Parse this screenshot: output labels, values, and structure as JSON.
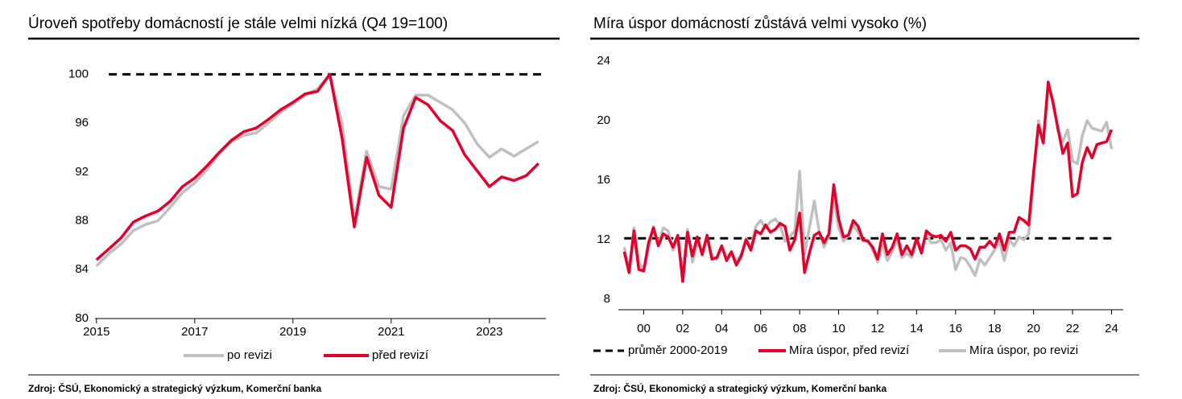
{
  "chart_data": [
    {
      "type": "line",
      "title": "Úroveň spotřeby domácností je stále velmi nízká (Q4 19=100)",
      "source": "Zdroj: ČSÚ, Ekonomický a strategický výzkum, Komerční banka",
      "x": [
        2015,
        2015.25,
        2015.5,
        2015.75,
        2016,
        2016.25,
        2016.5,
        2016.75,
        2017,
        2017.25,
        2017.5,
        2017.75,
        2018,
        2018.25,
        2018.5,
        2018.75,
        2019,
        2019.25,
        2019.5,
        2019.75,
        2020,
        2020.25,
        2020.5,
        2020.75,
        2021,
        2021.25,
        2021.5,
        2021.75,
        2022,
        2022.25,
        2022.5,
        2022.75,
        2023,
        2023.25,
        2023.5,
        2023.75,
        2024
      ],
      "series": [
        {
          "name": "po revizi",
          "color": "#c0c0c0",
          "values": [
            84.3,
            85.3,
            86.1,
            87.2,
            87.7,
            88.0,
            89.1,
            90.3,
            91.1,
            92.2,
            93.5,
            94.5,
            95.0,
            95.2,
            96.0,
            96.9,
            97.6,
            98.3,
            98.8,
            100,
            96.0,
            88.0,
            93.7,
            90.8,
            90.6,
            96.6,
            98.3,
            98.3,
            97.7,
            97.1,
            96.0,
            94.3,
            93.2,
            93.9,
            93.3,
            93.9,
            94.5
          ]
        },
        {
          "name": "před revizí",
          "color": "#e4002b",
          "values": [
            84.8,
            85.7,
            86.6,
            87.9,
            88.4,
            88.8,
            89.6,
            90.8,
            91.5,
            92.5,
            93.6,
            94.6,
            95.3,
            95.6,
            96.3,
            97.1,
            97.7,
            98.4,
            98.6,
            100,
            94.8,
            87.5,
            93.2,
            90.1,
            89.1,
            95.6,
            98.1,
            97.5,
            96.2,
            95.4,
            93.4,
            92.1,
            90.8,
            91.6,
            91.3,
            91.7,
            92.7
          ]
        }
      ],
      "reference": {
        "value": 100,
        "x": [
          2015.25,
          2024.15
        ],
        "color": "#000000"
      },
      "xlim": [
        2014.97,
        2024.15
      ],
      "xticks": [
        2015,
        2017,
        2019,
        2021,
        2023
      ],
      "ylim": [
        80,
        102
      ],
      "yticks": [
        80,
        84,
        88,
        92,
        96,
        100
      ],
      "grid": false
    },
    {
      "type": "line",
      "title": "Míra úspor domácností zůstává velmi vysoko (%)",
      "source": "Zdroj: ČSÚ, Ekonomický a strategický výzkum, Komerční banka",
      "x": [
        1999,
        1999.25,
        1999.5,
        1999.75,
        2000,
        2000.25,
        2000.5,
        2000.75,
        2001,
        2001.25,
        2001.5,
        2001.75,
        2002,
        2002.25,
        2002.5,
        2002.75,
        2003,
        2003.25,
        2003.5,
        2003.75,
        2004,
        2004.25,
        2004.5,
        2004.75,
        2005,
        2005.25,
        2005.5,
        2005.75,
        2006,
        2006.25,
        2006.5,
        2006.75,
        2007,
        2007.25,
        2007.5,
        2007.75,
        2008,
        2008.25,
        2008.5,
        2008.75,
        2009,
        2009.25,
        2009.5,
        2009.75,
        2010,
        2010.25,
        2010.5,
        2010.75,
        2011,
        2011.25,
        2011.5,
        2011.75,
        2012,
        2012.25,
        2012.5,
        2012.75,
        2013,
        2013.25,
        2013.5,
        2013.75,
        2014,
        2014.25,
        2014.5,
        2014.75,
        2015,
        2015.25,
        2015.5,
        2015.75,
        2016,
        2016.25,
        2016.5,
        2016.75,
        2017,
        2017.25,
        2017.5,
        2017.75,
        2018,
        2018.25,
        2018.5,
        2018.75,
        2019,
        2019.25,
        2019.5,
        2019.75,
        2020,
        2020.25,
        2020.5,
        2020.75,
        2021,
        2021.25,
        2021.5,
        2021.75,
        2022,
        2022.25,
        2022.5,
        2022.75,
        2023,
        2023.25,
        2023.5,
        2023.75,
        2024
      ],
      "series": [
        {
          "name": "Míra úspor, před revizí",
          "color": "#e4002b",
          "values": [
            11.2,
            9.8,
            12.6,
            10.0,
            9.9,
            11.8,
            12.8,
            11.6,
            12.4,
            12.2,
            11.5,
            12.3,
            9.2,
            12.5,
            10.9,
            12.2,
            11.0,
            12.3,
            10.7,
            10.8,
            11.6,
            10.6,
            11.2,
            10.3,
            10.9,
            12.0,
            11.3,
            12.6,
            12.4,
            13.0,
            12.5,
            12.7,
            13.1,
            12.9,
            11.3,
            12.0,
            13.8,
            9.8,
            11.1,
            12.3,
            12.5,
            11.8,
            12.4,
            15.7,
            13.4,
            12.2,
            12.3,
            13.3,
            12.9,
            12.0,
            11.9,
            11.5,
            10.7,
            12.4,
            11.0,
            11.5,
            12.4,
            11.0,
            11.6,
            11.0,
            12.1,
            11.1,
            12.6,
            12.3,
            12.2,
            12.3,
            11.9,
            12.5,
            11.3,
            11.6,
            11.6,
            11.4,
            10.7,
            11.5,
            11.5,
            11.9,
            11.5,
            12.4,
            11.3,
            12.5,
            12.5,
            13.5,
            13.3,
            13.0,
            16.5,
            19.7,
            18.5,
            22.6,
            21.2,
            19.5,
            17.8,
            18.5,
            14.9,
            15.1,
            17.2,
            18.2,
            17.5,
            18.4,
            18.5,
            18.6,
            19.4
          ]
        },
        {
          "name": "Míra úspor, po revizi",
          "color": "#c0c0c0",
          "values": [
            11.5,
            10.0,
            12.8,
            10.5,
            10.0,
            11.5,
            12.9,
            11.7,
            12.8,
            12.6,
            11.3,
            12.0,
            9.8,
            12.7,
            10.5,
            11.8,
            11.2,
            12.1,
            10.9,
            10.7,
            11.5,
            10.9,
            11.1,
            10.6,
            11.0,
            12.1,
            11.5,
            12.9,
            13.3,
            12.8,
            13.2,
            13.4,
            13.0,
            11.9,
            12.2,
            12.6,
            16.6,
            11.0,
            12.8,
            14.6,
            12.6,
            11.5,
            12.3,
            14.8,
            12.8,
            11.9,
            12.3,
            13.0,
            12.5,
            11.9,
            12.0,
            11.3,
            10.5,
            11.7,
            10.6,
            11.2,
            12.0,
            10.8,
            11.1,
            10.8,
            11.9,
            11.4,
            12.4,
            11.8,
            11.8,
            12.0,
            11.3,
            11.8,
            10.0,
            10.8,
            10.7,
            10.2,
            9.6,
            10.7,
            10.3,
            10.8,
            11.3,
            11.9,
            10.6,
            12.0,
            11.6,
            12.2,
            12.0,
            12.4,
            16.0,
            20.0,
            18.8,
            22.2,
            21.5,
            19.3,
            18.6,
            19.4,
            17.3,
            17.1,
            19.0,
            20.0,
            19.5,
            19.4,
            19.3,
            19.9,
            18.1
          ]
        }
      ],
      "reference": {
        "name": "průměr 2000-2019",
        "value": 12.1,
        "x": [
          1999,
          2024.2
        ],
        "color": "#000000"
      },
      "xlim": [
        1998.7,
        2024.6
      ],
      "xticks": [
        {
          "value": 2000,
          "label": "00"
        },
        {
          "value": 2002,
          "label": "02"
        },
        {
          "value": 2004,
          "label": "04"
        },
        {
          "value": 2006,
          "label": "06"
        },
        {
          "value": 2008,
          "label": "08"
        },
        {
          "value": 2010,
          "label": "10"
        },
        {
          "value": 2012,
          "label": "12"
        },
        {
          "value": 2014,
          "label": "14"
        },
        {
          "value": 2016,
          "label": "16"
        },
        {
          "value": 2018,
          "label": "18"
        },
        {
          "value": 2020,
          "label": "20"
        },
        {
          "value": 2022,
          "label": "22"
        },
        {
          "value": 2024,
          "label": "24"
        }
      ],
      "ylim": [
        7.3,
        24.6
      ],
      "yticks": [
        8,
        12,
        16,
        20,
        24
      ],
      "grid": false
    }
  ]
}
